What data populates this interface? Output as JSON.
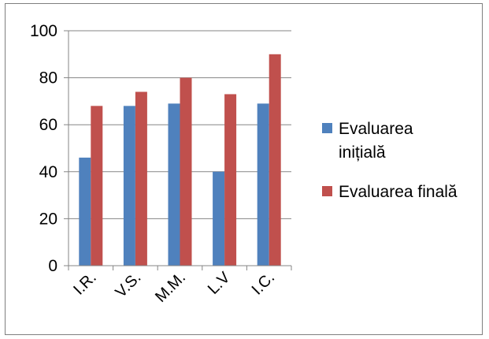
{
  "chart_data": {
    "type": "bar",
    "categories": [
      "I.R.",
      "V.S.",
      "M.M.",
      "L.V",
      "I.C."
    ],
    "series": [
      {
        "name": "Evaluarea inițială",
        "legend_lines": [
          "Evaluarea",
          "inițială"
        ],
        "values": [
          46,
          68,
          69,
          40,
          69
        ],
        "color": "#4f81bd"
      },
      {
        "name": "Evaluarea finală",
        "legend_lines": [
          "Evaluarea finală"
        ],
        "values": [
          68,
          74,
          80,
          73,
          90
        ],
        "color": "#c0504d"
      }
    ],
    "ylim": [
      0,
      100
    ],
    "yticks": [
      0,
      20,
      40,
      60,
      80,
      100
    ],
    "grid": true,
    "legend_position": "right",
    "title": "",
    "xlabel": "",
    "ylabel": ""
  }
}
